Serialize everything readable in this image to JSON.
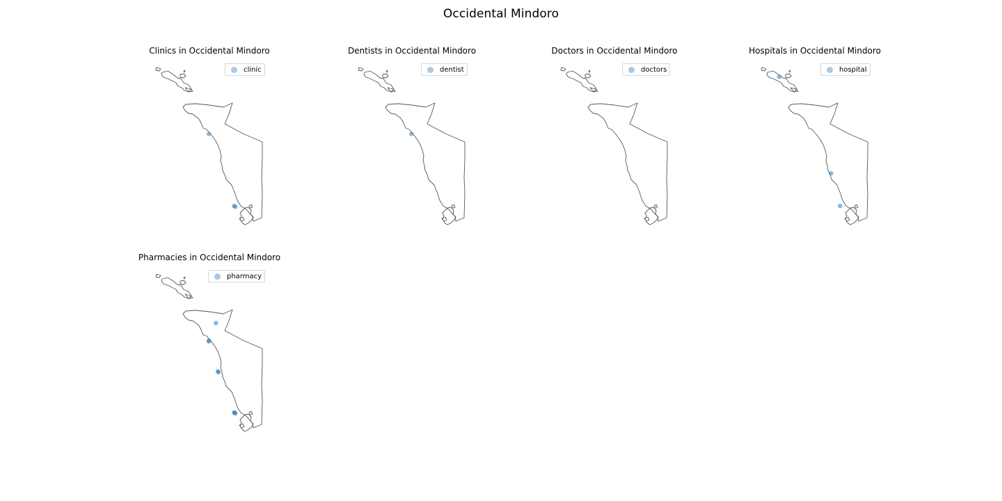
{
  "title": "Occidental Mindoro",
  "colors": {
    "outline": "#555555",
    "marker_light": "#a9c8e2",
    "marker_dark": "#2f7bb2",
    "legend_border": "#d6d6d6"
  },
  "panels": [
    {
      "id": "clinics",
      "title": "Clinics in Occidental Mindoro",
      "legend_label": "clinic",
      "points": [
        {
          "lon": 120.79,
          "lat": 13.17
        },
        {
          "lon": 121.18,
          "lat": 12.35
        },
        {
          "lon": 121.2,
          "lat": 12.34
        }
      ]
    },
    {
      "id": "dentists",
      "title": "Dentists in Occidental Mindoro",
      "legend_label": "dentist",
      "points": [
        {
          "lon": 120.79,
          "lat": 13.17
        }
      ]
    },
    {
      "id": "doctors",
      "title": "Doctors in Occidental Mindoro",
      "legend_label": "doctors",
      "points": []
    },
    {
      "id": "hospitals",
      "title": "Hospitals in Occidental Mindoro",
      "legend_label": "hospital",
      "points": [
        {
          "lon": 120.25,
          "lat": 13.82
        },
        {
          "lon": 121.05,
          "lat": 12.72
        },
        {
          "lon": 121.19,
          "lat": 12.35
        }
      ]
    },
    {
      "id": "pharmacies",
      "title": "Pharmacies in Occidental Mindoro",
      "legend_label": "pharmacy",
      "points": [
        {
          "lon": 120.9,
          "lat": 13.37
        },
        {
          "lon": 120.79,
          "lat": 13.17
        },
        {
          "lon": 120.79,
          "lat": 13.16
        },
        {
          "lon": 120.93,
          "lat": 12.82
        },
        {
          "lon": 120.94,
          "lat": 12.81
        },
        {
          "lon": 121.18,
          "lat": 12.35
        },
        {
          "lon": 121.19,
          "lat": 12.35
        },
        {
          "lon": 121.2,
          "lat": 12.34
        }
      ]
    }
  ]
}
